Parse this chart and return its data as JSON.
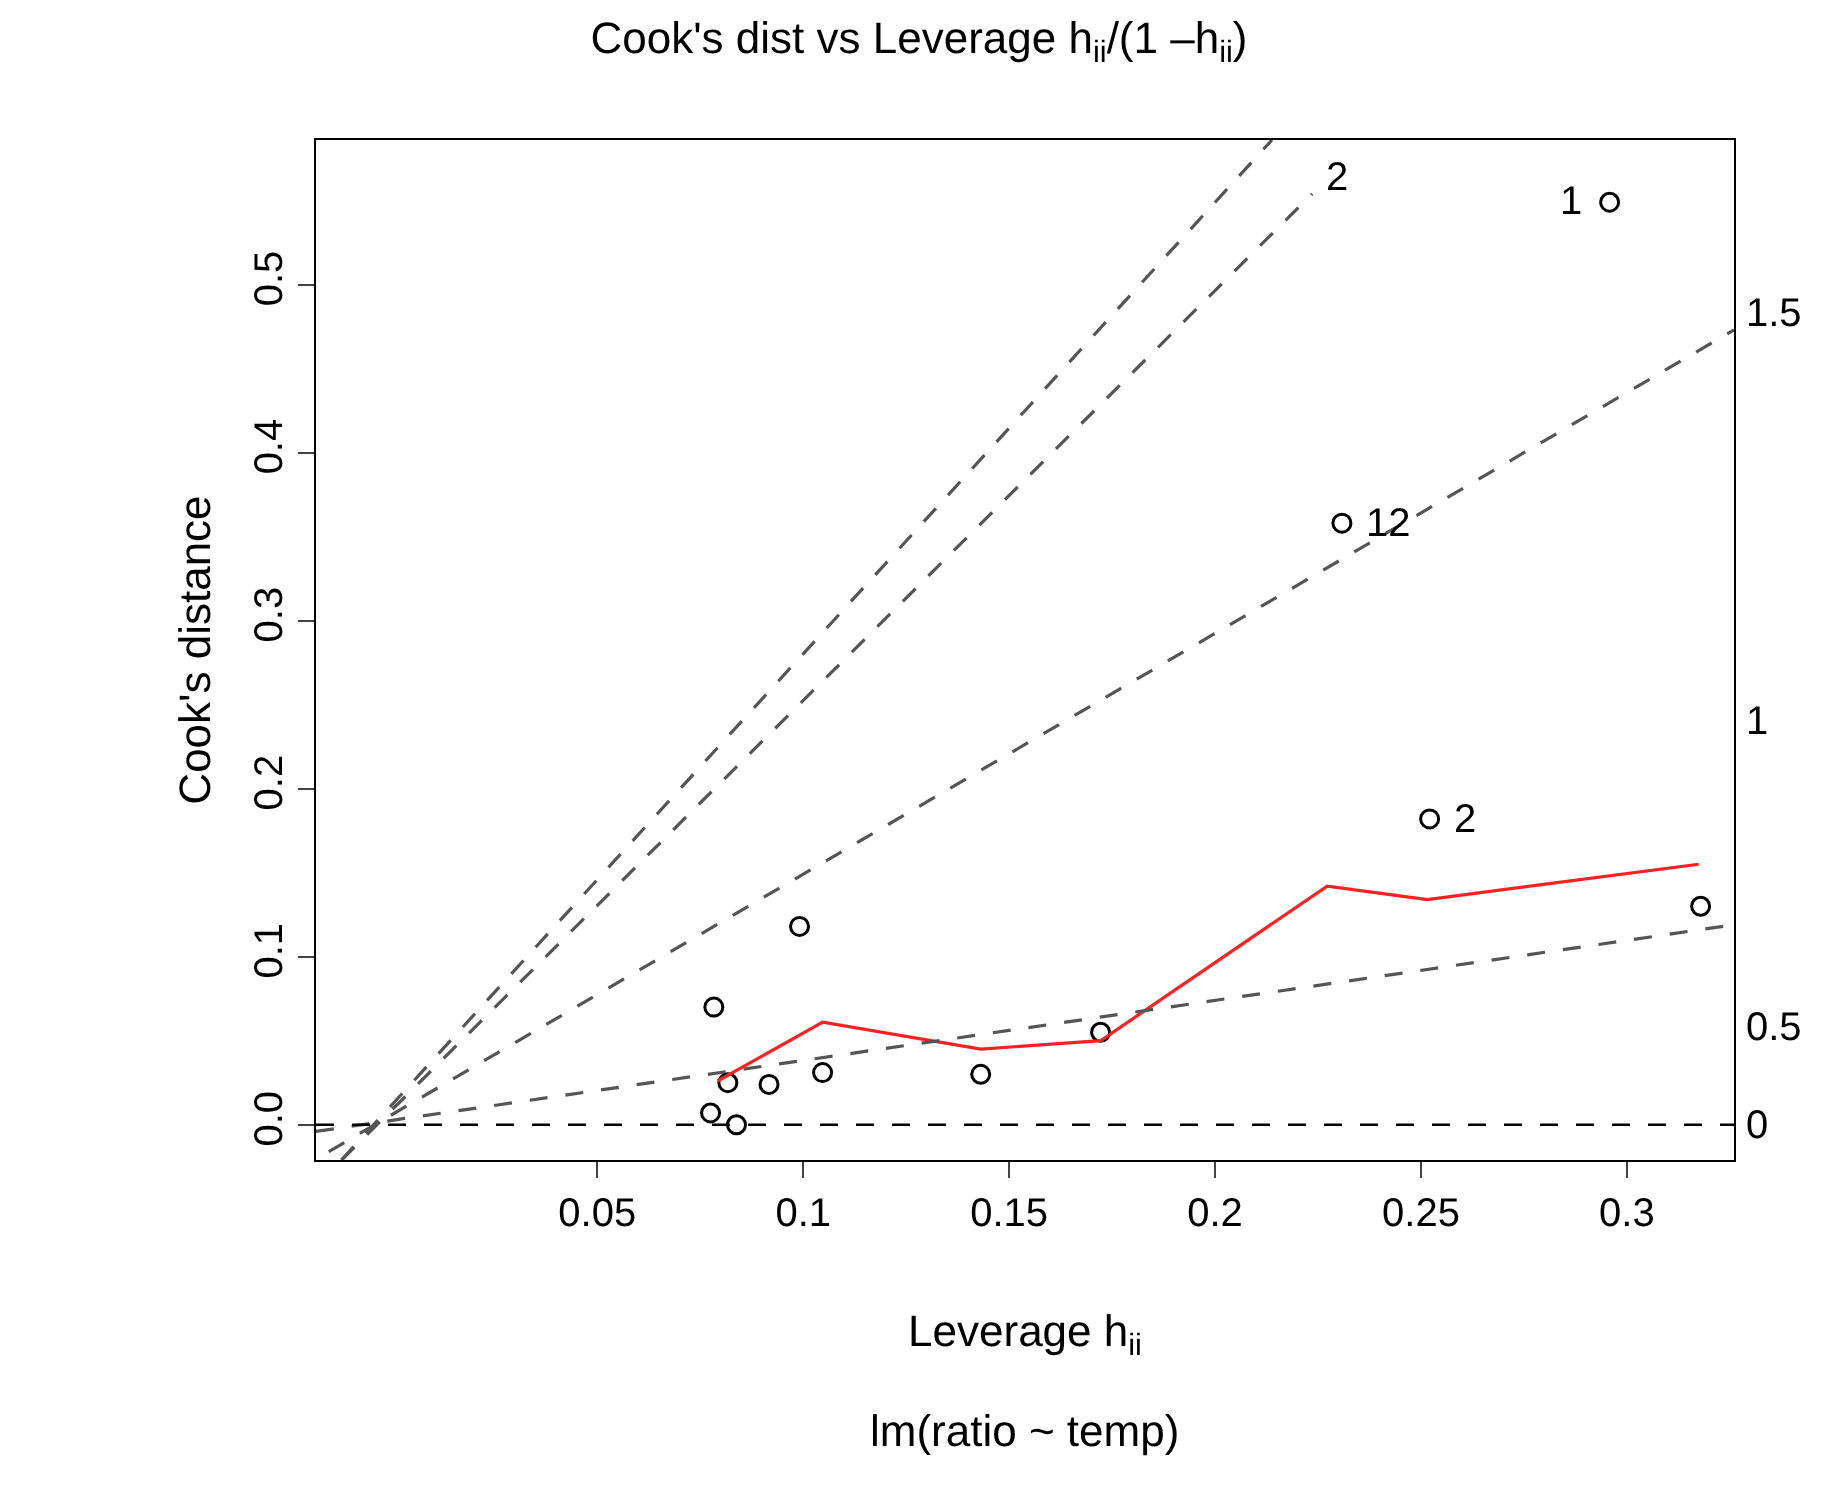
{
  "chart_data": {
    "type": "scatter",
    "title": "Cook's dist vs Leverage h$_{ii}$/(1 –h$_{ii}$)",
    "xlabel": "Leverage h$_{ii}$",
    "ylabel": "Cook's distance",
    "xlim": [
      -0.0183,
      0.326
    ],
    "ylim": [
      -0.021,
      0.586
    ],
    "xticks": [
      0.05,
      0.1,
      0.15,
      0.2,
      0.25,
      0.3
    ],
    "yticks": [
      {
        "value": 0,
        "label": "0.0"
      },
      0.1,
      0.2,
      0.3,
      0.4,
      0.5
    ],
    "series": [
      {
        "marker": "circle",
        "color": "#000000",
        "x": [
          0.0783,
          0.0817,
          0.0775,
          0.0838,
          0.0917,
          0.1047,
          0.0991,
          0.1431,
          0.1722,
          0.2521,
          0.3179,
          0.2958,
          0.2308
        ],
        "values": [
          0.07,
          0.025,
          0.007,
          0.0,
          0.024,
          0.031,
          0.118,
          0.03,
          0.055,
          0.182,
          0.13,
          0.549,
          0.358
        ]
      },
      {
        "type": "line",
        "marker": "none",
        "line_style": "solid",
        "color": "#ff2020",
        "x": [
          0.0792,
          0.1047,
          0.1431,
          0.1722,
          0.2272,
          0.2515,
          0.3174
        ],
        "values": [
          0.026,
          0.061,
          0.045,
          0.05,
          0.142,
          0.134,
          0.155
        ]
      },
      {
        "type": "line",
        "marker": "none",
        "line_style": "dashed",
        "color": "#555555",
        "x": [
          -0.0183,
          0.326
        ],
        "values": [
          -0.004,
          0.119
        ]
      },
      {
        "type": "line",
        "marker": "none",
        "line_style": "dashed",
        "color": "#555555",
        "x": [
          -0.0152,
          0.326
        ],
        "values": [
          -0.016,
          0.473
        ]
      },
      {
        "type": "line",
        "marker": "none",
        "line_style": "dashed",
        "color": "#555555",
        "x": [
          -0.0121,
          0.2236
        ],
        "values": [
          -0.021,
          0.554
        ]
      },
      {
        "type": "line",
        "marker": "none",
        "line_style": "dashed",
        "color": "#555555",
        "x": [
          -0.0121,
          0.2138
        ],
        "values": [
          -0.021,
          0.586
        ]
      }
    ],
    "ref_lines": [
      {
        "axis": "y",
        "value": 0,
        "color": "#000000",
        "line_style": "dashed"
      }
    ],
    "annotations": [
      "lm(ratio ~ temp)",
      "1",
      "12",
      "2",
      "2",
      "0",
      "0.5",
      "1",
      "1.5"
    ]
  }
}
